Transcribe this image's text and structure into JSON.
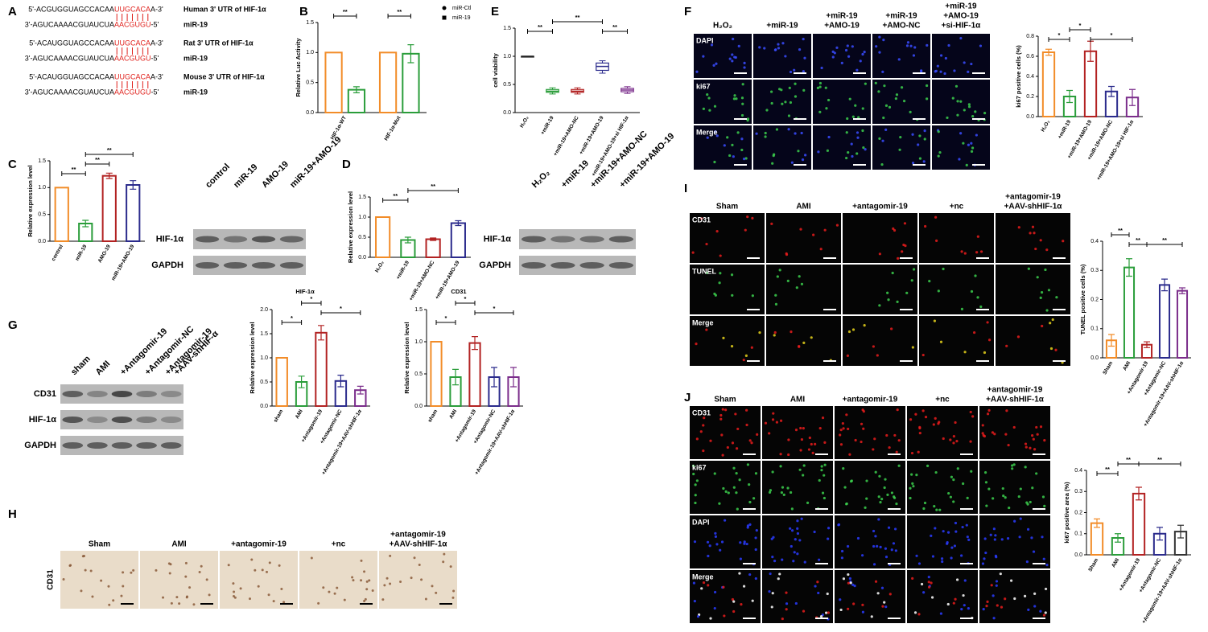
{
  "panel_labels": [
    "A",
    "B",
    "C",
    "D",
    "E",
    "F",
    "G",
    "H",
    "I",
    "J"
  ],
  "sequences": [
    {
      "parts": [
        "5'-ACGUGGUAGCCACAA",
        "UUGCACA",
        "A-3'"
      ],
      "label": "Human 3' UTR of HIF-1α"
    },
    {
      "parts": [
        "3'-AGUCAAAACGUAUCUA",
        "AACGUGU",
        "-5'"
      ],
      "label": "miR-19"
    },
    {
      "parts": [
        "5'-ACAUGGUAGCCACAA",
        "UUGCACA",
        "A-3'"
      ],
      "label": "Rat 3' UTR of HIF-1α"
    },
    {
      "parts": [
        "3'-AGUCAAAACGUAUCUA",
        "AACGUGU",
        "-5'"
      ],
      "label": "miR-19"
    },
    {
      "parts": [
        "5'-ACAUGGUAGCCACAA",
        "UUGCACA",
        "A-3'"
      ],
      "label": "Mouse 3' UTR of HIF-1α"
    },
    {
      "parts": [
        "3'-AGUCAAAACGUAUCUA",
        "AACGUGU",
        "-5'"
      ],
      "label": "miR-19"
    }
  ],
  "blots": [
    {
      "lanes": [
        [
          "control"
        ],
        [
          "miR-19"
        ],
        [
          "AMO-19"
        ],
        [
          "miR-19+AMO-19"
        ]
      ],
      "rows": [
        "HIF-1α",
        "GAPDH"
      ]
    },
    {
      "lanes": [
        [
          "H₂O₂"
        ],
        [
          "+miR-19"
        ],
        [
          "+miR-19+AMO-NC"
        ],
        [
          "+miR-19+AMO-19"
        ]
      ],
      "rows": [
        "HIF-1α",
        "GAPDH"
      ]
    },
    {
      "lanes": [
        [
          "sham"
        ],
        [
          "AMI"
        ],
        [
          "+Antagomir-19"
        ],
        [
          "+Antagomir-NC"
        ],
        [
          "+Antagomir-19",
          "+AAV-shHIF-α"
        ]
      ],
      "rows": [
        "CD31",
        "HIF-1α",
        "GAPDH"
      ]
    }
  ],
  "image_grids": [
    {
      "columns": [
        [
          "H₂O₂"
        ],
        [
          "+miR-19"
        ],
        [
          "+miR-19",
          "+AMO-19"
        ],
        [
          "+miR-19",
          "+AMO-NC"
        ],
        [
          "+miR-19",
          "+AMO-19",
          "+si-HIF-1α"
        ]
      ],
      "rows": [
        "DAPI",
        "ki67",
        "Merge"
      ]
    },
    {
      "columns": [
        [
          "Sham"
        ],
        [
          "AMI"
        ],
        [
          "+antagomir-19"
        ],
        [
          "+nc"
        ],
        [
          "+antagomir-19",
          "+AAV-shHIF-1α"
        ]
      ],
      "rows": [
        "CD31",
        "TUNEL",
        "Merge"
      ]
    },
    {
      "columns": [
        [
          "Sham"
        ],
        [
          "AMI"
        ],
        [
          "+antagomir-19"
        ],
        [
          "+nc"
        ],
        [
          "+antagomir-19",
          "+AAV-shHIF-1α"
        ]
      ],
      "rows": [
        "CD31",
        "ki67",
        "DAPI",
        "Merge"
      ]
    },
    {
      "columns": [
        [
          "Sham"
        ],
        [
          "AMI"
        ],
        [
          "+antagomir-19"
        ],
        [
          "+nc"
        ],
        [
          "+antagomir-19",
          "+AAV-shHIF-1α"
        ]
      ],
      "rows": [
        "CD31"
      ]
    }
  ],
  "chart_data": [
    {
      "type": "bar",
      "ylabel": "Relative Luc Activity",
      "categories": [
        "HIF-1α-WT",
        "HIF-1α-Mut"
      ],
      "series": [
        {
          "name": "miR-Ctl",
          "color": "#f28c28",
          "values": [
            1.0,
            1.0
          ],
          "errors": [
            0,
            0
          ]
        },
        {
          "name": "miR-19",
          "color": "#2a9d3a",
          "values": [
            0.38,
            0.98
          ],
          "errors": [
            0.05,
            0.15
          ]
        }
      ],
      "ylim": [
        0,
        1.5
      ],
      "yticks": [
        {
          "value": 0,
          "label": "0.0"
        },
        0.5,
        {
          "value": 1,
          "label": "1.0"
        },
        1.5
      ],
      "significance": [
        "**",
        "**"
      ]
    },
    {
      "type": "bar",
      "ylabel": "Relative expression level",
      "categories": [
        "control",
        "miR-19",
        "AMO-19",
        "miR-19+AMO-19"
      ],
      "values": [
        1.0,
        0.33,
        1.22,
        1.05
      ],
      "errors": [
        0,
        0.06,
        0.05,
        0.08
      ],
      "colors": [
        "#f28c28",
        "#2a9d3a",
        "#b22222",
        "#2b2b8c"
      ],
      "ylim": [
        0,
        1.5
      ],
      "yticks": [
        {
          "value": 0,
          "label": "0.0"
        },
        0.5,
        {
          "value": 1,
          "label": "1.0"
        },
        1.5
      ],
      "significance": [
        "**",
        "**",
        "**"
      ]
    },
    {
      "type": "bar",
      "ylabel": "Relative expression level",
      "categories": [
        "H₂O₂",
        "+miR-19",
        "+miR-19+AMO-NC",
        "+miR-19+AMO-19"
      ],
      "values": [
        1.0,
        0.43,
        0.45,
        0.85
      ],
      "errors": [
        0,
        0.07,
        0.03,
        0.06
      ],
      "colors": [
        "#f28c28",
        "#2a9d3a",
        "#b22222",
        "#2b2b8c"
      ],
      "ylim": [
        0,
        1.5
      ],
      "yticks": [
        {
          "value": 0,
          "label": "0.0"
        },
        0.5,
        {
          "value": 1,
          "label": "1.0"
        },
        1.5
      ],
      "significance": [
        "**",
        "**"
      ]
    },
    {
      "type": "box",
      "ylabel": "cell viability",
      "categories": [
        "H₂O₂",
        "+miR-19",
        "+miR-19+AMO-NC",
        "+miR-19+AMO-19",
        "+miR-19+AMO-19+si HIF-1α"
      ],
      "boxes": [
        {
          "min": 1.0,
          "q1": 1.0,
          "median": 1.0,
          "q3": 1.0,
          "max": 1.0
        },
        {
          "min": 0.33,
          "q1": 0.36,
          "median": 0.38,
          "q3": 0.41,
          "max": 0.44
        },
        {
          "min": 0.33,
          "q1": 0.36,
          "median": 0.38,
          "q3": 0.41,
          "max": 0.44
        },
        {
          "min": 0.7,
          "q1": 0.75,
          "median": 0.82,
          "q3": 0.88,
          "max": 0.92
        },
        {
          "min": 0.34,
          "q1": 0.37,
          "median": 0.4,
          "q3": 0.43,
          "max": 0.46
        }
      ],
      "colors": [
        "#222222",
        "#2a9d3a",
        "#b22222",
        "#2b2b8c",
        "#7b2d8b"
      ],
      "ylim": [
        0,
        1.5
      ],
      "yticks": [
        {
          "value": 0,
          "label": "0.0"
        },
        0.5,
        {
          "value": 1,
          "label": "1.0"
        },
        1.5
      ],
      "significance": [
        "**",
        "**",
        "**"
      ]
    },
    {
      "type": "bar",
      "ylabel": "ki67 positive cells (%)",
      "categories": [
        "H₂O₂",
        "+miR-19",
        "+miR-19+AMO-19",
        "+miR-19+AMO-NC",
        "+miR-19+AMO-19+si HIF-1α"
      ],
      "values": [
        0.64,
        0.2,
        0.65,
        0.25,
        0.19
      ],
      "errors": [
        0.03,
        0.06,
        0.1,
        0.05,
        0.08
      ],
      "colors": [
        "#f28c28",
        "#2a9d3a",
        "#b22222",
        "#2b2b8c",
        "#7b2d8b"
      ],
      "ylim": [
        0,
        0.8
      ],
      "yticks": [
        {
          "value": 0,
          "label": "0.0"
        },
        0.2,
        0.4,
        0.6,
        0.8
      ],
      "significance": [
        "*",
        "*",
        "*"
      ]
    },
    {
      "type": "bar",
      "title": "HIF-1α",
      "ylabel": "Relative expression level",
      "categories": [
        "sham",
        "AMI",
        "+Antagomir-19",
        "+Antagomir-NC",
        "+Antagomir-19+AAV-shHIF-1α"
      ],
      "values": [
        1.0,
        0.5,
        1.52,
        0.52,
        0.33
      ],
      "errors": [
        0,
        0.12,
        0.15,
        0.12,
        0.08
      ],
      "colors": [
        "#f28c28",
        "#2a9d3a",
        "#b22222",
        "#2b2b8c",
        "#7b2d8b"
      ],
      "ylim": [
        0,
        2
      ],
      "yticks": [
        {
          "value": 0,
          "label": "0.0"
        },
        0.5,
        {
          "value": 1,
          "label": "1.0"
        },
        1.5,
        {
          "value": 2,
          "label": "2.0"
        }
      ],
      "significance": [
        "*",
        "*",
        "*"
      ]
    },
    {
      "type": "bar",
      "title": "CD31",
      "ylabel": "Relative expression level",
      "categories": [
        "sham",
        "AMI",
        "+Antagomir-19",
        "+Antagomir-NC",
        "+Antagomir-19+AAV-shHIF-1α"
      ],
      "values": [
        1.0,
        0.45,
        0.98,
        0.45,
        0.45
      ],
      "errors": [
        0,
        0.12,
        0.1,
        0.15,
        0.15
      ],
      "colors": [
        "#f28c28",
        "#2a9d3a",
        "#b22222",
        "#2b2b8c",
        "#7b2d8b"
      ],
      "ylim": [
        0,
        1.5
      ],
      "yticks": [
        {
          "value": 0,
          "label": "0.0"
        },
        0.5,
        {
          "value": 1,
          "label": "1.0"
        },
        1.5
      ],
      "significance": [
        "*",
        "*",
        "*"
      ]
    },
    {
      "type": "bar",
      "ylabel": "TUNEL positive cells (%)",
      "categories": [
        "Sham",
        "AMI",
        "+Antagomir-19",
        "+Antagomir-NC",
        "+Antagomir-19+AAV-shHIF-1α"
      ],
      "values": [
        0.06,
        0.31,
        0.045,
        0.25,
        0.23
      ],
      "errors": [
        0.02,
        0.03,
        0.01,
        0.02,
        0.01
      ],
      "colors": [
        "#f28c28",
        "#2a9d3a",
        "#b22222",
        "#2b2b8c",
        "#7b2d8b"
      ],
      "ylim": [
        0,
        0.4
      ],
      "yticks": [
        {
          "value": 0,
          "label": "0.0"
        },
        0.1,
        0.2,
        0.3,
        0.4
      ],
      "significance": [
        "**",
        "**",
        "**"
      ]
    },
    {
      "type": "bar",
      "ylabel": "ki67 positive area (%)",
      "categories": [
        "Sham",
        "AMI",
        "+Antagomir-19",
        "+Antagomir-NC",
        "+Antagomir-19+AAV-shHIF-1α"
      ],
      "values": [
        0.15,
        0.08,
        0.29,
        0.1,
        0.11
      ],
      "errors": [
        0.02,
        0.02,
        0.03,
        0.03,
        0.03
      ],
      "colors": [
        "#f28c28",
        "#2a9d3a",
        "#b22222",
        "#2b2b8c",
        "#333333"
      ],
      "ylim": [
        0,
        0.4
      ],
      "yticks": [
        {
          "value": 0,
          "label": "0.0"
        },
        0.1,
        0.2,
        0.3,
        0.4
      ],
      "significance": [
        "**",
        "**",
        "**"
      ]
    }
  ]
}
